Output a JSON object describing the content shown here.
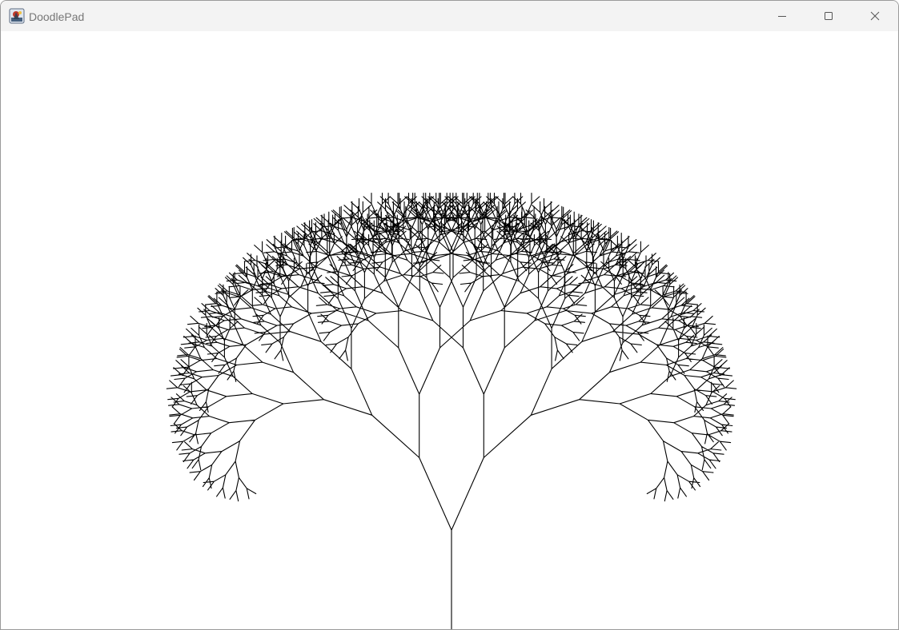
{
  "window": {
    "title": "DoodlePad",
    "app_icon": "java-app-icon",
    "controls": {
      "minimize_icon": "minimize-icon",
      "maximize_icon": "maximize-icon",
      "close_icon": "close-icon"
    }
  },
  "canvas": {
    "background": "#ffffff",
    "drawing": {
      "kind": "fractal-tree",
      "stroke_color": "#000000",
      "trunk_length": 124,
      "length_ratio": 0.8,
      "branch_angle_deg": 24,
      "depth": 11
    }
  }
}
